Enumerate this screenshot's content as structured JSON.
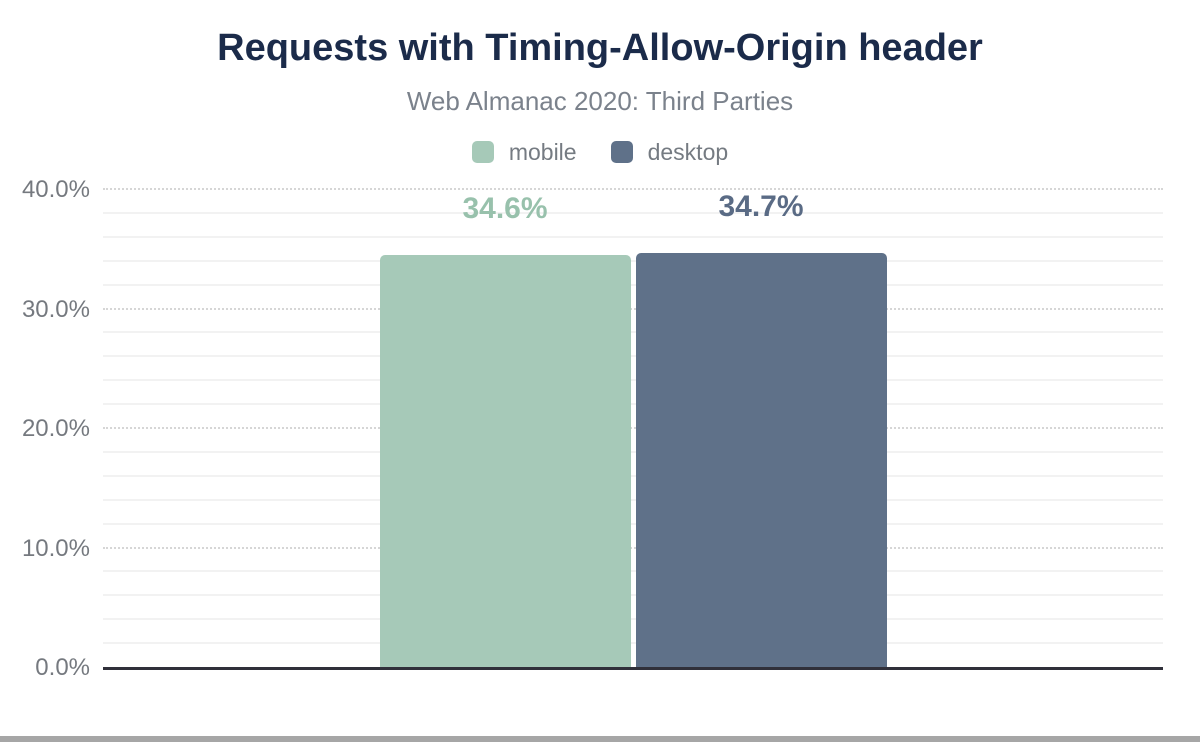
{
  "header": {
    "title": "Requests with Timing-Allow-Origin header",
    "subtitle": "Web Almanac 2020: Third Parties"
  },
  "legend": {
    "items": [
      {
        "label": "mobile",
        "color": "#a6c9b8"
      },
      {
        "label": "desktop",
        "color": "#5f7189"
      }
    ]
  },
  "chart_data": {
    "type": "bar",
    "title": "Requests with Timing-Allow-Origin header",
    "subtitle": "Web Almanac 2020: Third Parties",
    "categories": [
      "mobile",
      "desktop"
    ],
    "values": [
      34.6,
      34.7
    ],
    "value_labels": [
      "34.6%",
      "34.7%"
    ],
    "bar_colors": [
      "#a6c9b8",
      "#5f7189"
    ],
    "value_label_colors": [
      "#98c1ac",
      "#5a6b85"
    ],
    "xlabel": "",
    "ylabel": "",
    "ylim": [
      0,
      40
    ],
    "ytick_interval": 10,
    "minor_gridline_interval": 2,
    "ytick_labels": [
      "0.0%",
      "10.0%",
      "20.0%",
      "30.0%",
      "40.0%"
    ],
    "grid": "on",
    "legend_position": "top"
  },
  "chrome": {
    "bottom_bar_color": "#a6a6a6"
  }
}
